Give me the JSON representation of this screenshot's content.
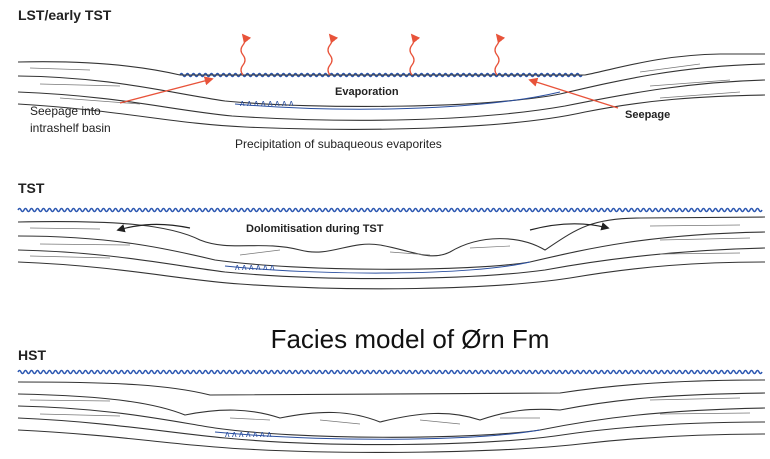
{
  "title": "Facies model of Ørn Fm",
  "panels": [
    {
      "label": "LST/early TST",
      "annotations": {
        "evaporation": "Evaporation",
        "seepage_left": [
          "Seepage into",
          "intrashelf basin"
        ],
        "seepage_right": "Seepage",
        "precipitation": "Precipitation of subaqueous evaporites"
      }
    },
    {
      "label": "TST",
      "annotations": {
        "dolomitisation": "Dolomitisation during TST"
      }
    },
    {
      "label": "HST"
    }
  ]
}
